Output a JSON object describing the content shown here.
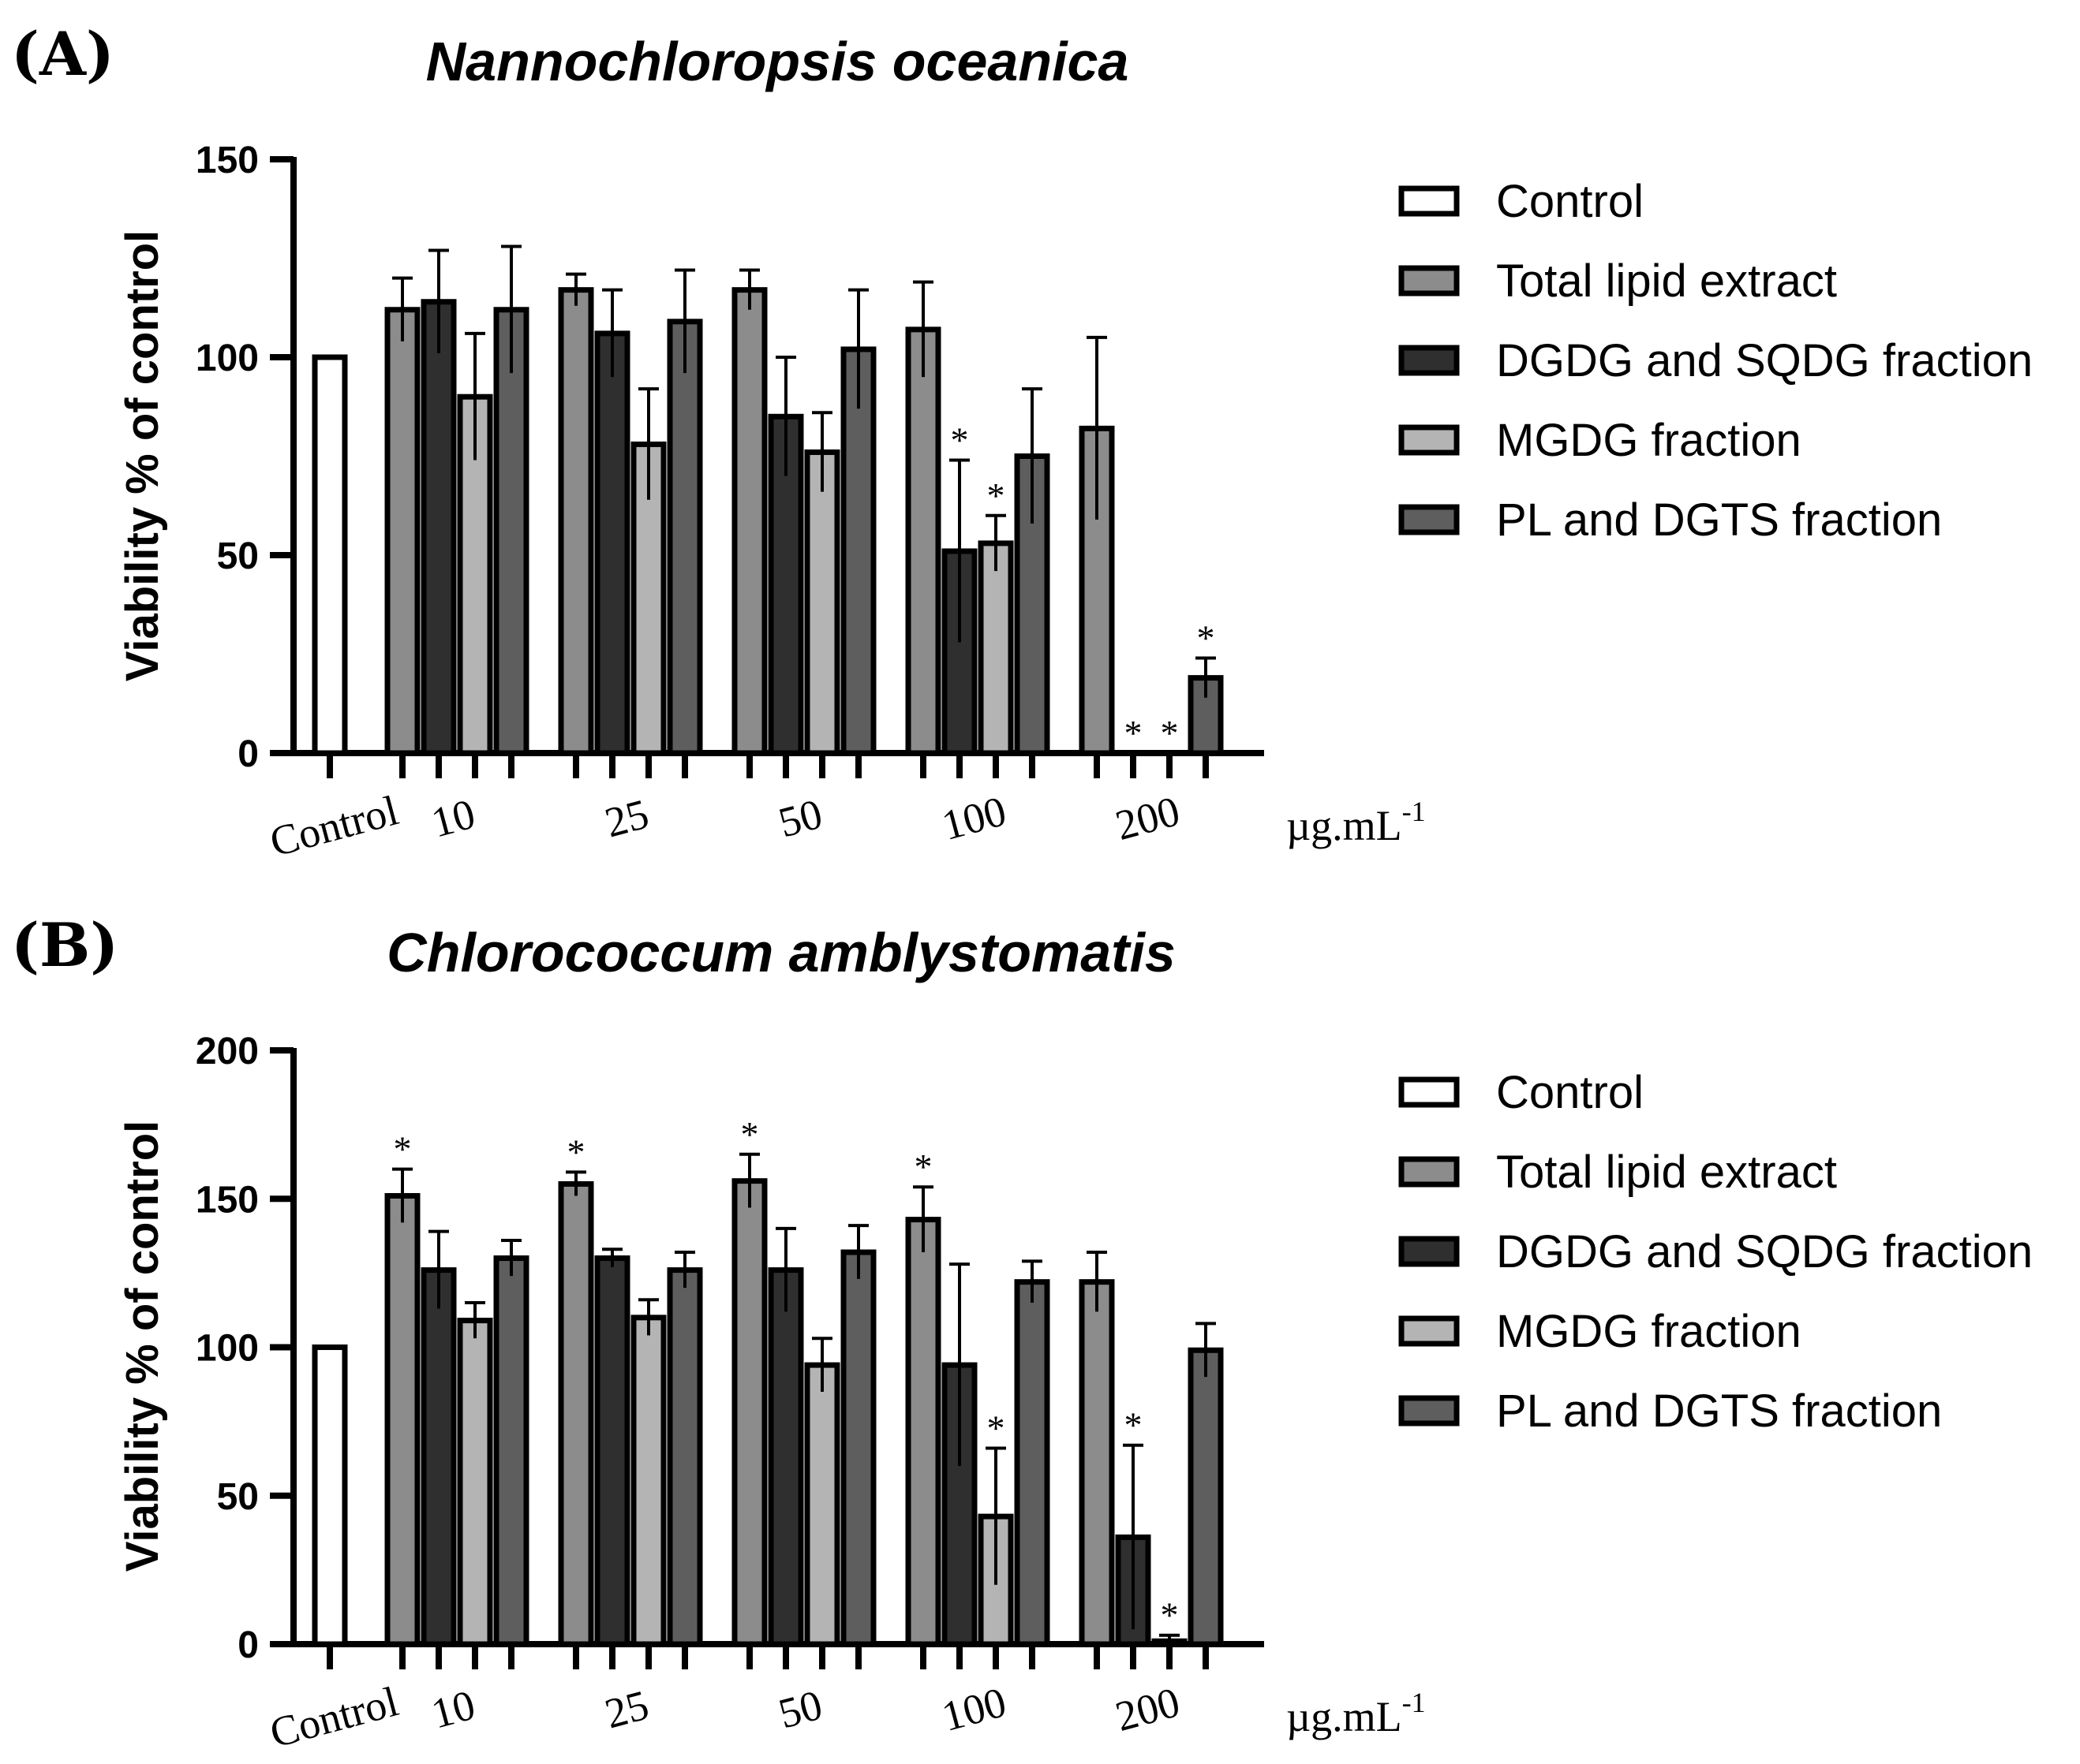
{
  "chart_data": [
    {
      "type": "bar",
      "panel_label": "(A)",
      "title": "Nannochloropsis oceanica",
      "ylabel": "Viability % of control",
      "xlabel": "",
      "unit_label": "µg.mL",
      "unit_exponent": "-1",
      "ylim": [
        0,
        150
      ],
      "yticks": [
        "0",
        "50",
        "100",
        "150"
      ],
      "control": {
        "name": "Control",
        "value": 100
      },
      "categories": [
        "10",
        "25",
        "50",
        "100",
        "200"
      ],
      "series": [
        {
          "name": "Total lipid extract",
          "values": [
            112,
            117,
            117,
            107,
            82
          ],
          "errors": [
            8,
            4,
            5,
            12,
            23
          ],
          "significant": [
            false,
            false,
            false,
            false,
            false
          ]
        },
        {
          "name": "DGDG and SQDG fraction",
          "values": [
            114,
            106,
            85,
            51,
            0
          ],
          "errors": [
            13,
            11,
            15,
            23,
            0
          ],
          "significant": [
            false,
            false,
            false,
            true,
            true
          ]
        },
        {
          "name": "MGDG fraction",
          "values": [
            90,
            78,
            76,
            53,
            0
          ],
          "errors": [
            16,
            14,
            10,
            7,
            0
          ],
          "significant": [
            false,
            false,
            false,
            true,
            true
          ]
        },
        {
          "name": "PL and DGTS fraction",
          "values": [
            112,
            109,
            102,
            75,
            19
          ],
          "errors": [
            16,
            13,
            15,
            17,
            5
          ],
          "significant": [
            false,
            false,
            false,
            false,
            true
          ]
        }
      ],
      "legend": [
        "Control",
        "Total lipid extract",
        "DGDG and SQDG fraction",
        "MGDG fraction",
        "PL and DGTS fraction"
      ],
      "significance_marker": "*"
    },
    {
      "type": "bar",
      "panel_label": "(B)",
      "title": "Chlorococcum amblystomatis",
      "ylabel": "Viability % of control",
      "xlabel": "",
      "unit_label": "µg.mL",
      "unit_exponent": "-1",
      "ylim": [
        0,
        200
      ],
      "yticks": [
        "0",
        "50",
        "100",
        "150",
        "200"
      ],
      "control": {
        "name": "Control",
        "value": 100
      },
      "categories": [
        "10",
        "25",
        "50",
        "100",
        "200"
      ],
      "series": [
        {
          "name": "Total lipid extract",
          "values": [
            151,
            155,
            156,
            143,
            122
          ],
          "errors": [
            9,
            4,
            9,
            11,
            10
          ],
          "significant": [
            true,
            true,
            true,
            true,
            false
          ]
        },
        {
          "name": "DGDG and SQDG fraction",
          "values": [
            126,
            130,
            126,
            94,
            36
          ],
          "errors": [
            13,
            3,
            14,
            34,
            31
          ],
          "significant": [
            false,
            false,
            false,
            false,
            true
          ]
        },
        {
          "name": "MGDG fraction",
          "values": [
            109,
            110,
            94,
            43,
            1
          ],
          "errors": [
            6,
            6,
            9,
            23,
            2
          ],
          "significant": [
            false,
            false,
            false,
            true,
            true
          ]
        },
        {
          "name": "PL and DGTS fraction",
          "values": [
            130,
            126,
            132,
            122,
            99
          ],
          "errors": [
            6,
            6,
            9,
            7,
            9
          ],
          "significant": [
            false,
            false,
            false,
            false,
            false
          ]
        }
      ],
      "legend": [
        "Control",
        "Total lipid extract",
        "DGDG and SQDG fraction",
        "MGDG fraction",
        "PL and DGTS fraction"
      ],
      "significance_marker": "*"
    }
  ],
  "styles": {
    "control_fill": "#ffffff",
    "series_fills": [
      "#8c8c8c",
      "#2f2f2f",
      "#b4b4b4",
      "#5e5e5e"
    ],
    "stroke": "#000000"
  }
}
